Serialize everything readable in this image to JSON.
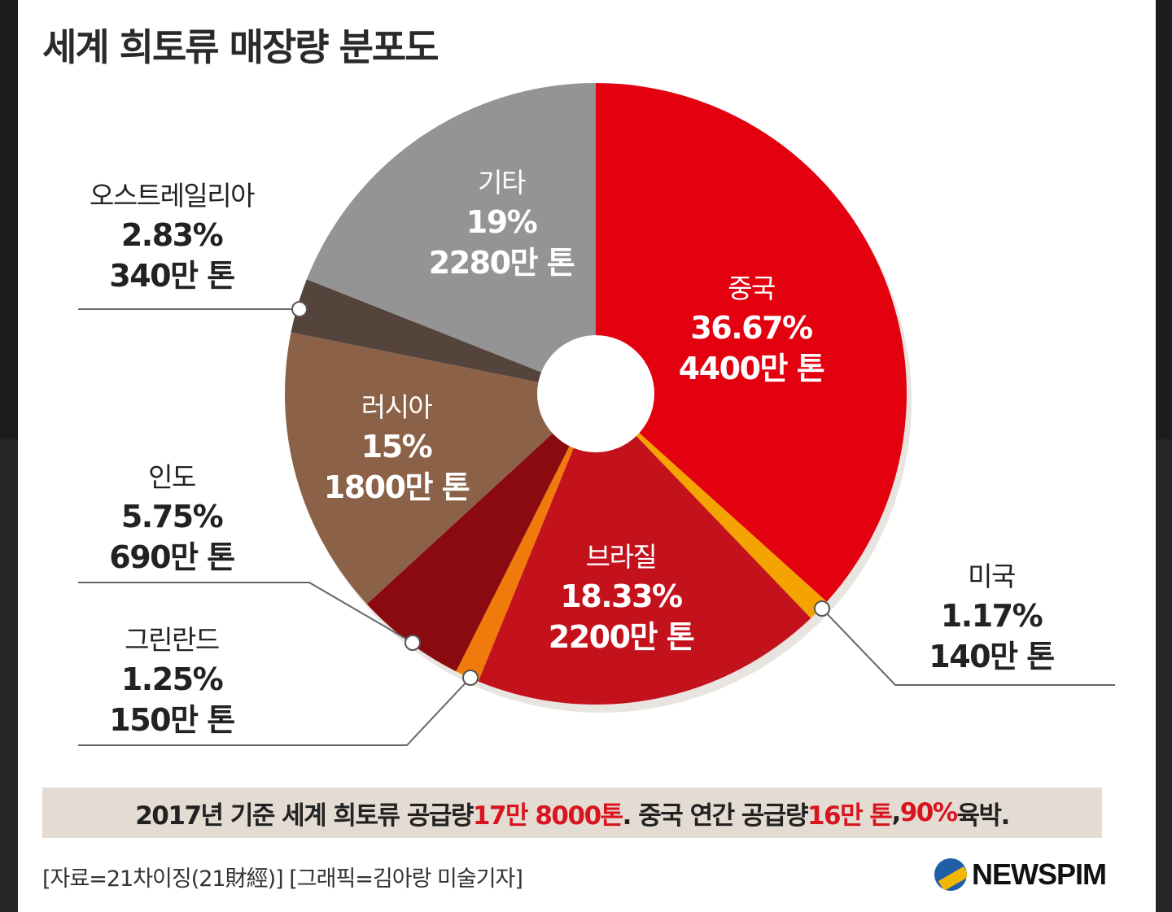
{
  "title": "세계 희토류 매장량 분포도",
  "chart_data": {
    "type": "pie",
    "title": "세계 희토류 매장량 분포도",
    "slices": [
      {
        "name": "중국",
        "percent_label": "36.67%",
        "amount_label": "4400만 톤",
        "value": 36.67,
        "color": "#e3000f"
      },
      {
        "name": "미국",
        "percent_label": "1.17%",
        "amount_label": "140만 톤",
        "value": 1.17,
        "color": "#f5a300"
      },
      {
        "name": "브라질",
        "percent_label": "18.33%",
        "amount_label": "2200만 톤",
        "value": 18.33,
        "color": "#c4121d"
      },
      {
        "name": "그린란드",
        "percent_label": "1.25%",
        "amount_label": "150만 톤",
        "value": 1.25,
        "color": "#f07a0c"
      },
      {
        "name": "인도",
        "percent_label": "5.75%",
        "amount_label": "690만 톤",
        "value": 5.75,
        "color": "#8a0a10"
      },
      {
        "name": "러시아",
        "percent_label": "15%",
        "amount_label": "1800만 톤",
        "value": 15,
        "color": "#8b6147"
      },
      {
        "name": "오스트레일리아",
        "percent_label": "2.83%",
        "amount_label": "340만 톤",
        "value": 2.83,
        "color": "#55443b"
      },
      {
        "name": "기타",
        "percent_label": "19%",
        "amount_label": "2280만 톤",
        "value": 19,
        "color": "#949494"
      }
    ]
  },
  "footer": {
    "part1": "2017년 기준 세계 희토류 공급량 ",
    "hl1": "17만 8000톤",
    "part2": ". 중국 연간 공급량 ",
    "hl2": "16만 톤",
    "part3": ", ",
    "hl3": "90%",
    "part4": " 육박."
  },
  "credit": "[자료=21차이징(21財經)] [그래픽=김아랑 미술기자]",
  "logo": {
    "text": "NEWSPIM",
    "icon": "newspim-logo-icon"
  }
}
